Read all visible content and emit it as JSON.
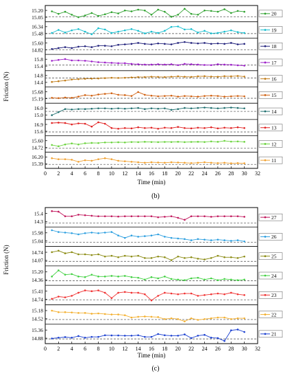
{
  "chart_data": [
    {
      "type": "line",
      "panel_label": "(b)",
      "xlabel": "Time (min)",
      "ylabel": "Friction (N)",
      "xlim": [
        0,
        32
      ],
      "x_ticks": [
        "0",
        "2",
        "4",
        "6",
        "8",
        "10",
        "12",
        "14",
        "16",
        "18",
        "20",
        "22",
        "24",
        "26",
        "28",
        "30",
        "32"
      ],
      "x": [
        1,
        2,
        3,
        4,
        5,
        6,
        7,
        8,
        9,
        10,
        11,
        12,
        13,
        14,
        15,
        16,
        17,
        18,
        19,
        20,
        21,
        22,
        23,
        24,
        25,
        26,
        27,
        28,
        29,
        30
      ],
      "grid": false,
      "legend_position": "right of each strip",
      "series": [
        {
          "name": "20",
          "color": "#2ca02c",
          "ticks": [
            "15.20",
            "15.05"
          ],
          "range": [
            14.98,
            15.27
          ],
          "ref": 15.05,
          "values": [
            15.18,
            15.12,
            15.17,
            15.1,
            15.04,
            15.08,
            15.14,
            15.07,
            15.11,
            15.16,
            15.13,
            15.2,
            15.18,
            15.22,
            15.2,
            15.1,
            15.22,
            15.17,
            15.05,
            15.1,
            15.24,
            15.12,
            15.1,
            15.2,
            15.19,
            15.17,
            15.23,
            15.14,
            15.19,
            15.17
          ]
        },
        {
          "name": "19",
          "color": "#17becf",
          "ticks": [
            "16.34",
            "15.48"
          ],
          "range": [
            15.2,
            16.6
          ],
          "ref": 15.48,
          "values": [
            15.55,
            15.9,
            15.6,
            15.85,
            16.0,
            15.7,
            15.4,
            16.1,
            15.95,
            15.55,
            15.7,
            15.85,
            16.0,
            15.8,
            15.5,
            15.7,
            15.55,
            15.8,
            16.25,
            16.3,
            15.95,
            16.0,
            15.6,
            15.8,
            15.5,
            15.55,
            15.7,
            15.85,
            15.65,
            15.55
          ]
        },
        {
          "name": "18",
          "color": "#1f1f7a",
          "ticks": [
            "15.60",
            "14.82"
          ],
          "range": [
            14.55,
            15.85
          ],
          "ref": 14.82,
          "values": [
            14.9,
            15.0,
            15.1,
            15.0,
            15.15,
            15.2,
            15.1,
            15.25,
            15.25,
            15.2,
            15.35,
            15.4,
            15.45,
            15.55,
            15.45,
            15.4,
            15.5,
            15.45,
            15.4,
            15.55,
            15.65,
            15.55,
            15.5,
            15.55,
            15.45,
            15.5,
            15.45,
            15.55,
            15.4,
            15.45
          ]
        },
        {
          "name": "17",
          "color": "#9c1fc8",
          "ticks": [
            "15.8",
            "15.4"
          ],
          "range": [
            15.25,
            15.95
          ],
          "ref": 15.45,
          "values": [
            15.7,
            15.75,
            15.8,
            15.72,
            15.72,
            15.7,
            15.66,
            15.62,
            15.6,
            15.58,
            15.56,
            15.56,
            15.52,
            15.5,
            15.48,
            15.48,
            15.5,
            15.48,
            15.5,
            15.45,
            15.52,
            15.5,
            15.48,
            15.46,
            15.45,
            15.5,
            15.48,
            15.47,
            15.44,
            15.42
          ]
        },
        {
          "name": "16",
          "color": "#c07a14",
          "ticks": [
            "14.8",
            "14.4"
          ],
          "range": [
            14.25,
            14.95
          ],
          "ref": 14.65,
          "values": [
            14.42,
            14.46,
            14.5,
            14.56,
            14.58,
            14.6,
            14.61,
            14.62,
            14.64,
            14.66,
            14.65,
            14.66,
            14.68,
            14.7,
            14.7,
            14.72,
            14.71,
            14.7,
            14.72,
            14.74,
            14.72,
            14.71,
            14.74,
            14.75,
            14.73,
            14.72,
            14.75,
            14.74,
            14.76,
            14.73
          ]
        },
        {
          "name": "15",
          "color": "#d06010",
          "ticks": [
            "15.68",
            "15.19"
          ],
          "range": [
            15.0,
            15.8
          ],
          "ref": 15.19,
          "values": [
            15.22,
            15.2,
            15.24,
            15.22,
            15.3,
            15.4,
            15.36,
            15.44,
            15.48,
            15.52,
            15.42,
            15.4,
            15.34,
            15.6,
            15.42,
            15.36,
            15.32,
            15.34,
            15.36,
            15.3,
            15.34,
            15.32,
            15.3,
            15.34,
            15.36,
            15.34,
            15.3,
            15.32,
            15.34,
            15.32
          ]
        },
        {
          "name": "14",
          "color": "#1f6f6f",
          "ticks": [
            "16.0",
            "15.0"
          ],
          "range": [
            14.7,
            16.3
          ],
          "ref": 15.5,
          "values": [
            15.0,
            15.4,
            15.8,
            15.75,
            15.8,
            15.8,
            15.85,
            15.9,
            15.9,
            15.85,
            15.9,
            15.85,
            15.9,
            15.95,
            15.8,
            15.9,
            15.85,
            15.9,
            15.7,
            15.8,
            15.95,
            15.9,
            15.95,
            16.0,
            15.95,
            15.9,
            15.95,
            16.0,
            15.95,
            15.9
          ]
        },
        {
          "name": "13",
          "color": "#e02020",
          "ticks": [
            "16.9",
            "15.6"
          ],
          "range": [
            15.4,
            17.1
          ],
          "ref": 15.65,
          "values": [
            16.9,
            16.95,
            16.9,
            16.7,
            16.85,
            16.8,
            16.4,
            17.0,
            16.8,
            16.2,
            16.1,
            16.2,
            16.15,
            16.3,
            16.2,
            16.25,
            16.1,
            16.25,
            16.2,
            16.35,
            16.2,
            16.15,
            16.25,
            16.2,
            16.3,
            16.15,
            16.25,
            16.2,
            16.3,
            16.2
          ]
        },
        {
          "name": "12",
          "color": "#6ad33c",
          "ticks": [
            "15.60",
            "14.72"
          ],
          "range": [
            14.55,
            15.75
          ],
          "ref": 14.72,
          "values": [
            15.05,
            14.92,
            15.1,
            15.2,
            15.1,
            15.22,
            15.25,
            15.24,
            15.3,
            15.3,
            15.32,
            15.3,
            15.34,
            15.33,
            15.36,
            15.34,
            15.33,
            15.35,
            15.34,
            15.36,
            15.33,
            15.35,
            15.36,
            15.34,
            15.4,
            15.36,
            15.46,
            15.38,
            15.4,
            15.36
          ]
        },
        {
          "name": "11",
          "color": "#f0a030",
          "ticks": [
            "16.20",
            "15.39"
          ],
          "range": [
            15.2,
            16.4
          ],
          "ref": 15.39,
          "values": [
            16.0,
            15.9,
            15.9,
            15.85,
            15.65,
            15.8,
            15.75,
            15.9,
            16.0,
            15.9,
            15.75,
            15.7,
            15.65,
            15.6,
            15.55,
            15.6,
            15.58,
            15.55,
            15.6,
            15.58,
            15.55,
            15.52,
            15.55,
            15.6,
            15.55,
            15.52,
            15.55,
            15.5,
            15.52,
            15.5
          ]
        }
      ]
    },
    {
      "type": "line",
      "panel_label": "(c)",
      "xlabel": "Time (min)",
      "ylabel": "Friction (N)",
      "xlim": [
        0,
        32
      ],
      "x_ticks": [
        "0",
        "2",
        "4",
        "6",
        "8",
        "10",
        "12",
        "14",
        "16",
        "18",
        "20",
        "22",
        "24",
        "26",
        "28",
        "30",
        "32"
      ],
      "x": [
        1,
        2,
        3,
        4,
        5,
        6,
        7,
        8,
        9,
        10,
        11,
        12,
        13,
        14,
        15,
        16,
        17,
        18,
        19,
        20,
        21,
        22,
        23,
        24,
        25,
        26,
        27,
        28,
        29,
        30
      ],
      "grid": false,
      "legend_position": "right of each strip",
      "series": [
        {
          "name": "27",
          "color": "#c0145a",
          "ticks": [
            "15.4",
            "14.3"
          ],
          "range": [
            14.1,
            15.6
          ],
          "ref": 14.3,
          "values": [
            15.45,
            15.4,
            14.95,
            14.95,
            15.1,
            15.05,
            15.0,
            14.95,
            14.95,
            14.95,
            14.92,
            14.95,
            14.95,
            14.95,
            14.95,
            14.95,
            14.85,
            14.9,
            14.95,
            14.8,
            14.6,
            14.95,
            14.95,
            14.95,
            14.9,
            14.95,
            14.95,
            14.95,
            14.95,
            14.9
          ]
        },
        {
          "name": "26",
          "color": "#2c9fe0",
          "ticks": [
            "15.98",
            "15.04"
          ],
          "range": [
            14.85,
            16.15
          ],
          "ref": 15.04,
          "values": [
            16.05,
            15.9,
            15.85,
            15.8,
            15.7,
            15.8,
            15.85,
            15.8,
            15.85,
            15.9,
            15.6,
            15.4,
            15.6,
            15.5,
            15.55,
            15.6,
            15.7,
            15.5,
            15.4,
            15.35,
            15.3,
            15.2,
            15.3,
            15.25,
            15.2,
            15.25,
            15.2,
            15.15,
            15.2,
            15.1
          ]
        },
        {
          "name": "25",
          "color": "#8a8a10",
          "ticks": [
            "14.74",
            "14.07"
          ],
          "range": [
            13.9,
            14.95
          ],
          "ref": 14.07,
          "values": [
            14.7,
            14.8,
            14.62,
            14.7,
            14.55,
            14.55,
            14.5,
            14.55,
            14.4,
            14.45,
            14.35,
            14.45,
            14.4,
            14.45,
            14.3,
            14.3,
            14.4,
            14.35,
            14.15,
            14.4,
            14.3,
            14.35,
            14.25,
            14.2,
            14.3,
            14.45,
            14.35,
            14.35,
            14.3,
            14.4
          ]
        },
        {
          "name": "24",
          "color": "#40d040",
          "ticks": [
            "15.20",
            "14.36"
          ],
          "range": [
            14.15,
            15.4
          ],
          "ref": 14.36,
          "values": [
            14.7,
            15.2,
            14.85,
            14.9,
            14.7,
            14.65,
            14.85,
            14.7,
            14.7,
            14.75,
            14.7,
            14.75,
            14.65,
            14.6,
            14.45,
            14.65,
            14.55,
            14.7,
            14.5,
            14.45,
            14.4,
            14.55,
            14.6,
            14.45,
            14.55,
            14.4,
            14.5,
            14.45,
            14.4,
            14.45
          ]
        },
        {
          "name": "23",
          "color": "#f03030",
          "ticks": [
            "15.41",
            "14.74"
          ],
          "range": [
            14.55,
            15.55
          ],
          "ref": 14.74,
          "values": [
            14.8,
            14.95,
            14.9,
            15.0,
            15.2,
            15.35,
            15.3,
            15.35,
            15.2,
            14.85,
            15.2,
            15.25,
            15.2,
            15.2,
            15.1,
            14.7,
            15.0,
            15.2,
            15.15,
            15.1,
            15.15,
            15.15,
            15.0,
            15.05,
            15.1,
            15.15,
            15.1,
            15.2,
            15.1,
            15.05
          ]
        },
        {
          "name": "22",
          "color": "#f4b030",
          "ticks": [
            "15.18",
            "14.52"
          ],
          "range": [
            14.35,
            15.35
          ],
          "ref": 14.52,
          "values": [
            15.1,
            15.0,
            15.0,
            14.98,
            14.95,
            14.95,
            14.9,
            14.92,
            14.88,
            14.85,
            14.85,
            14.8,
            14.65,
            14.7,
            14.72,
            14.7,
            14.68,
            14.55,
            14.6,
            14.55,
            14.4,
            14.6,
            14.5,
            14.55,
            14.6,
            14.65,
            14.65,
            14.55,
            14.6,
            14.6
          ]
        },
        {
          "name": "21",
          "color": "#1a3fd0",
          "ticks": [
            "15.36",
            "14.88"
          ],
          "range": [
            14.75,
            15.5
          ],
          "ref": 14.88,
          "values": [
            14.9,
            14.94,
            14.97,
            14.94,
            15.02,
            14.94,
            14.98,
            14.98,
            15.06,
            15.05,
            15.05,
            15.04,
            15.04,
            15.06,
            14.98,
            14.98,
            15.12,
            15.06,
            15.04,
            15.04,
            15.1,
            14.92,
            15.04,
            15.08,
            14.94,
            14.92,
            14.78,
            15.3,
            15.34,
            15.22
          ]
        }
      ]
    }
  ]
}
